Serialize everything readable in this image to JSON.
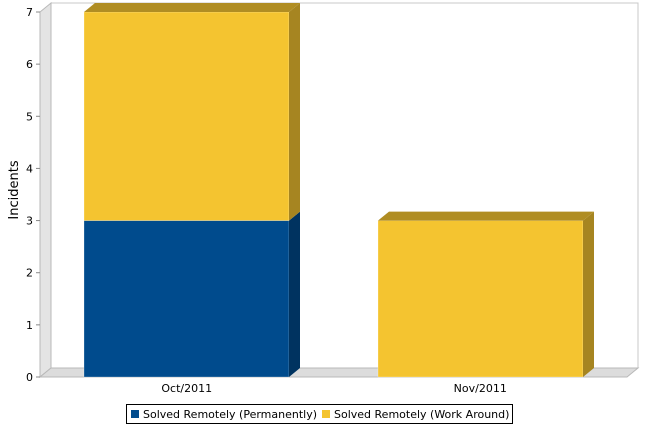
{
  "chart_data": {
    "type": "bar",
    "stacked": true,
    "three_d": true,
    "categories": [
      "Oct/2011",
      "Nov/2011"
    ],
    "series": [
      {
        "name": "Solved Remotely (Permanently)",
        "color": "#004B8D",
        "values": [
          3,
          0
        ]
      },
      {
        "name": "Solved Remotely (Work Around)",
        "color": "#F4C430",
        "values": [
          4,
          3
        ]
      }
    ],
    "xlabel": "",
    "ylabel": "Incidents",
    "ylim": [
      0,
      7
    ],
    "yticks": [
      "0",
      "1",
      "2",
      "3",
      "4",
      "5",
      "6",
      "7"
    ],
    "grid": true,
    "legend_position": "bottom-left"
  }
}
